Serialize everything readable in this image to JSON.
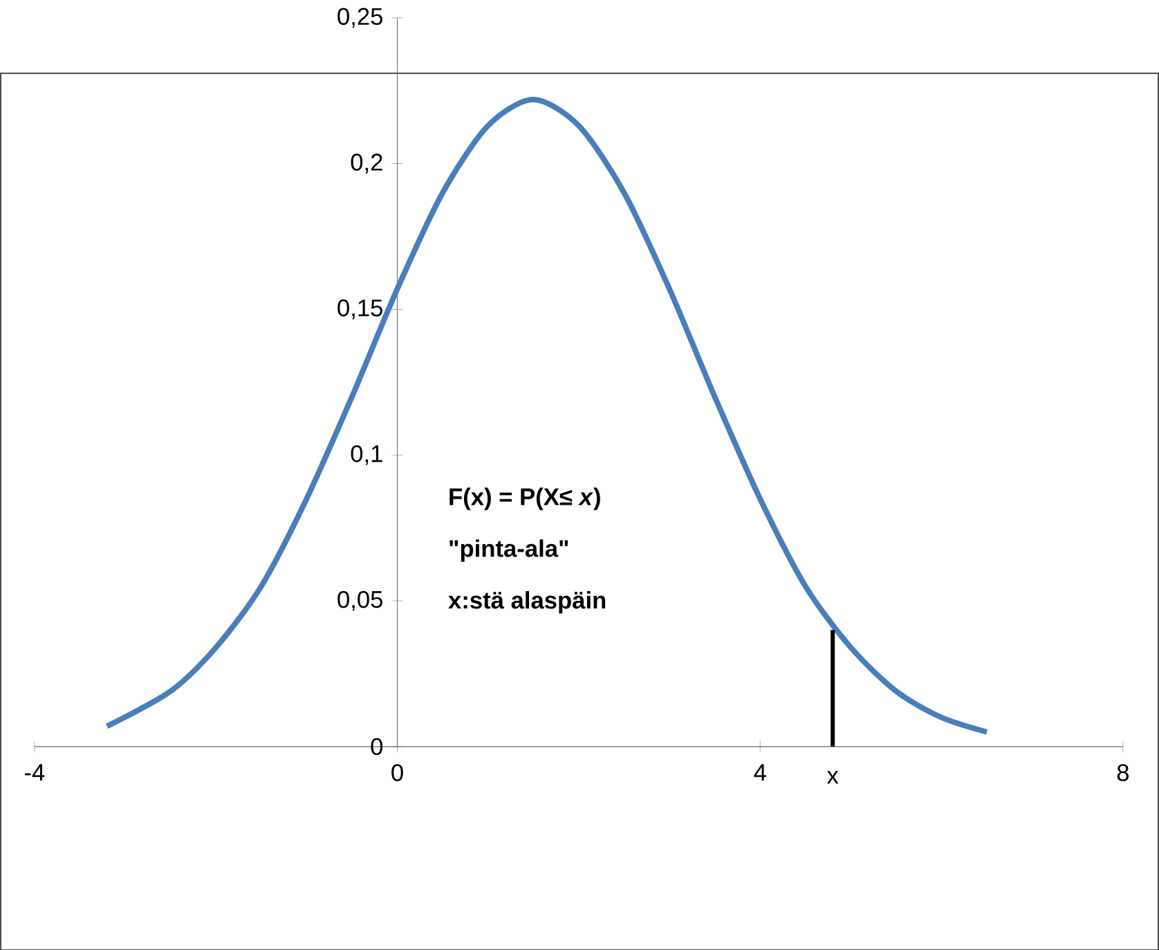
{
  "chart_data": {
    "type": "line",
    "xlim": [
      -4,
      8
    ],
    "ylim": [
      0,
      0.25
    ],
    "xticks": [
      -4,
      0,
      4,
      8
    ],
    "yticks": [
      {
        "value": 0,
        "label": "0"
      },
      {
        "value": 0.05,
        "label": "0,05"
      },
      {
        "value": 0.1,
        "label": "0,1"
      },
      {
        "value": 0.15,
        "label": "0,15"
      },
      {
        "value": 0.2,
        "label": "0,2"
      },
      {
        "value": 0.25,
        "label": "0,25"
      }
    ],
    "series": [
      {
        "color": "#4a7ebb",
        "x": [
          -3.2,
          -2.5,
          -2,
          -1.5,
          -1,
          -0.5,
          0,
          0.5,
          1,
          1.5,
          2,
          2.5,
          3,
          3.5,
          4,
          4.5,
          5,
          5.5,
          6,
          6.5
        ],
        "values": [
          0.007,
          0.019,
          0.034,
          0.055,
          0.085,
          0.12,
          0.157,
          0.19,
          0.213,
          0.222,
          0.213,
          0.19,
          0.157,
          0.12,
          0.085,
          0.055,
          0.034,
          0.019,
          0.01,
          0.005
        ]
      },
      {
        "type": "line",
        "color": "#000000",
        "x": [
          4.8,
          4.8
        ],
        "values": [
          0.04,
          0
        ]
      }
    ],
    "annotations": [
      "F(x) = P(X≤ *x*)",
      "\"pinta-ala\"",
      "x:stä alaspäin",
      {
        "text": "x",
        "x": 4.8,
        "y": 0
      }
    ]
  }
}
